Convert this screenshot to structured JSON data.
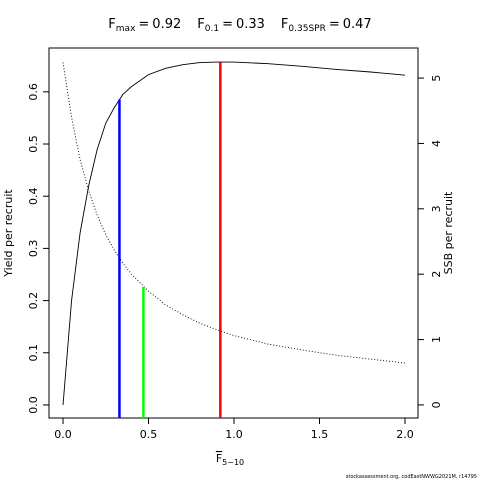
{
  "chart_data": {
    "type": "line",
    "reference_points": [
      {
        "symbol": "F",
        "subscript": "max",
        "relation": "=",
        "x": 0.92,
        "y": 0.657,
        "color": "#ff0000"
      },
      {
        "symbol": "F",
        "subscript": "0.1",
        "relation": "=",
        "x": 0.33,
        "y": 0.585,
        "color": "#0000ff"
      },
      {
        "symbol": "F",
        "subscript": "0.35SPR",
        "relation": "=",
        "x": 0.47,
        "y": 0.226,
        "color": "#00ff00"
      }
    ],
    "xlabel": {
      "text": "F",
      "subscript": "5−10"
    },
    "ylabel": "Yield per recruit",
    "y2label": "SSB per recruit",
    "footer": "stockassessment.org, codEastNWWG2021M, r14795",
    "x": [
      0,
      0.05,
      0.1,
      0.15,
      0.2,
      0.25,
      0.3,
      0.35,
      0.4,
      0.5,
      0.6,
      0.7,
      0.8,
      0.9,
      1.0,
      1.2,
      1.4,
      1.6,
      1.8,
      2.0
    ],
    "series": [
      {
        "name": "Yield per recruit",
        "color": "#000000",
        "style": "solid",
        "values": [
          0,
          0.2,
          0.33,
          0.42,
          0.49,
          0.54,
          0.57,
          0.595,
          0.61,
          0.633,
          0.645,
          0.652,
          0.656,
          0.657,
          0.657,
          0.654,
          0.649,
          0.643,
          0.638,
          0.632
        ]
      },
      {
        "name": "SSB per recruit",
        "color": "#000000",
        "style": "dotted",
        "axis": "y2",
        "values": [
          5.24,
          4.4,
          3.75,
          3.28,
          2.9,
          2.6,
          2.37,
          2.17,
          2.0,
          1.74,
          1.53,
          1.38,
          1.25,
          1.15,
          1.06,
          0.93,
          0.84,
          0.76,
          0.7,
          0.64
        ]
      }
    ],
    "xlim": [
      -0.082,
      2.076
    ],
    "xticks": [
      {
        "value": 0,
        "label": "0.0"
      },
      0.5,
      {
        "value": 1,
        "label": "1.0"
      },
      1.5,
      {
        "value": 2,
        "label": "2.0"
      }
    ],
    "ylim": [
      -0.025,
      0.684
    ],
    "yticks": [
      {
        "value": 0,
        "label": "0.0"
      },
      0.1,
      0.2,
      0.3,
      0.4,
      0.5,
      0.6
    ],
    "y2lim": [
      -0.2,
      5.46
    ],
    "y2ticks": [
      0,
      1,
      2,
      3,
      4,
      5
    ]
  }
}
